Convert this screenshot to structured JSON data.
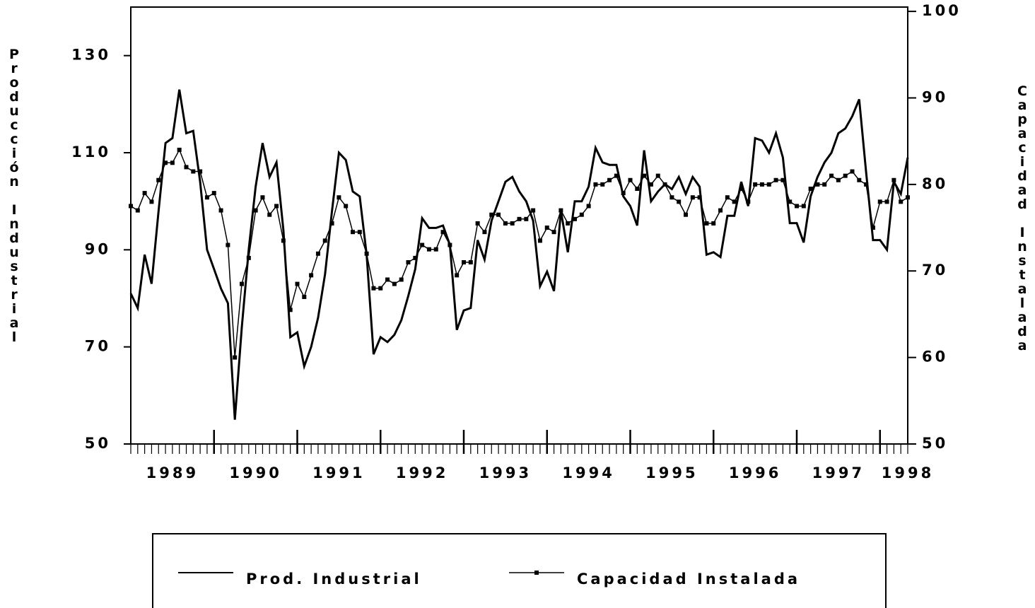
{
  "chart_data": {
    "type": "line",
    "y_label": "Producción Industrial",
    "y2_label": "Capacidad Instalada",
    "categories": [
      null,
      null,
      null,
      null,
      null,
      null,
      "1989",
      null,
      null,
      null,
      null,
      null,
      null,
      null,
      null,
      null,
      null,
      null,
      "1990",
      null,
      null,
      null,
      null,
      null,
      null,
      null,
      null,
      null,
      null,
      null,
      "1991",
      null,
      null,
      null,
      null,
      null,
      null,
      null,
      null,
      null,
      null,
      null,
      "1992",
      null,
      null,
      null,
      null,
      null,
      null,
      null,
      null,
      null,
      null,
      null,
      "1993",
      null,
      null,
      null,
      null,
      null,
      null,
      null,
      null,
      null,
      null,
      null,
      "1994",
      null,
      null,
      null,
      null,
      null,
      null,
      null,
      null,
      null,
      null,
      null,
      "1995",
      null,
      null,
      null,
      null,
      null,
      null,
      null,
      null,
      null,
      null,
      null,
      "1996",
      null,
      null,
      null,
      null,
      null,
      null,
      null,
      null,
      null,
      null,
      null,
      "1997",
      null,
      null,
      null,
      null,
      null,
      null,
      null,
      null,
      null,
      "1998"
    ],
    "series": [
      {
        "name": "Prod. Industrial",
        "color": "#000000",
        "values": [
          81,
          78,
          89,
          83,
          98,
          112,
          113,
          123,
          114,
          114.5,
          104,
          90,
          86,
          82,
          79,
          55,
          74,
          90,
          103,
          112,
          105,
          108,
          94,
          72,
          73,
          66,
          70,
          76,
          85,
          98,
          110,
          108.5,
          102,
          101,
          89,
          68.5,
          72,
          71,
          72.5,
          75.5,
          80.5,
          86,
          96.5,
          94.5,
          94.5,
          95,
          91,
          73.5,
          77.5,
          78,
          92,
          88,
          96,
          100,
          104,
          105,
          102,
          100,
          96,
          82.5,
          85.5,
          81.5,
          98,
          89.5,
          100,
          100,
          103,
          111,
          108,
          107.5,
          107.5,
          101,
          99,
          95,
          110.5,
          100,
          102,
          103.5,
          102.5,
          105,
          101.5,
          105,
          103,
          89,
          89.5,
          88.5,
          97,
          97,
          104,
          99,
          113,
          112.5,
          110,
          114,
          109,
          95.5,
          95.5,
          91.5,
          101,
          105,
          108,
          110,
          114,
          115,
          117.5,
          121,
          106,
          92,
          92,
          90,
          104,
          101.5,
          109
        ]
      },
      {
        "name": "Capacidad Instalada",
        "color": "#000000",
        "axis": "y2",
        "marker": "square",
        "values": [
          77.5,
          77,
          79,
          78,
          80.5,
          82.5,
          82.5,
          84,
          82,
          81.5,
          81.5,
          78.5,
          79,
          77,
          73,
          60,
          68.5,
          71.5,
          77,
          78.5,
          76.5,
          77.5,
          73.5,
          65.5,
          68.5,
          67,
          69.5,
          72,
          73.5,
          75.5,
          78.5,
          77.5,
          74.5,
          74.5,
          72,
          68,
          68,
          69,
          68.5,
          69,
          71,
          71.5,
          73,
          72.5,
          72.5,
          74.5,
          73,
          69.5,
          71,
          71,
          75.5,
          74.5,
          76.5,
          76.5,
          75.5,
          75.5,
          76,
          76,
          77,
          73.5,
          75,
          74.5,
          77,
          75.5,
          76,
          76.5,
          77.5,
          80,
          80,
          80.5,
          81,
          79,
          80.5,
          79.5,
          81,
          80,
          81,
          80,
          78.5,
          78,
          76.5,
          78.5,
          78.5,
          75.5,
          75.5,
          77,
          78.5,
          78,
          79.5,
          78,
          80,
          80,
          80,
          80.5,
          80.5,
          78,
          77.5,
          77.5,
          79.5,
          80,
          80,
          81,
          80.5,
          81,
          81.5,
          80.5,
          80,
          75,
          78,
          78,
          80.5,
          78,
          78.5
        ]
      }
    ],
    "ylim": [
      50,
      140
    ],
    "yticks": [
      50,
      70,
      90,
      110,
      130
    ],
    "y2lim": [
      50,
      100.5
    ],
    "y2ticks": [
      50,
      60,
      70,
      80,
      90,
      100
    ],
    "legend": "bottom"
  }
}
